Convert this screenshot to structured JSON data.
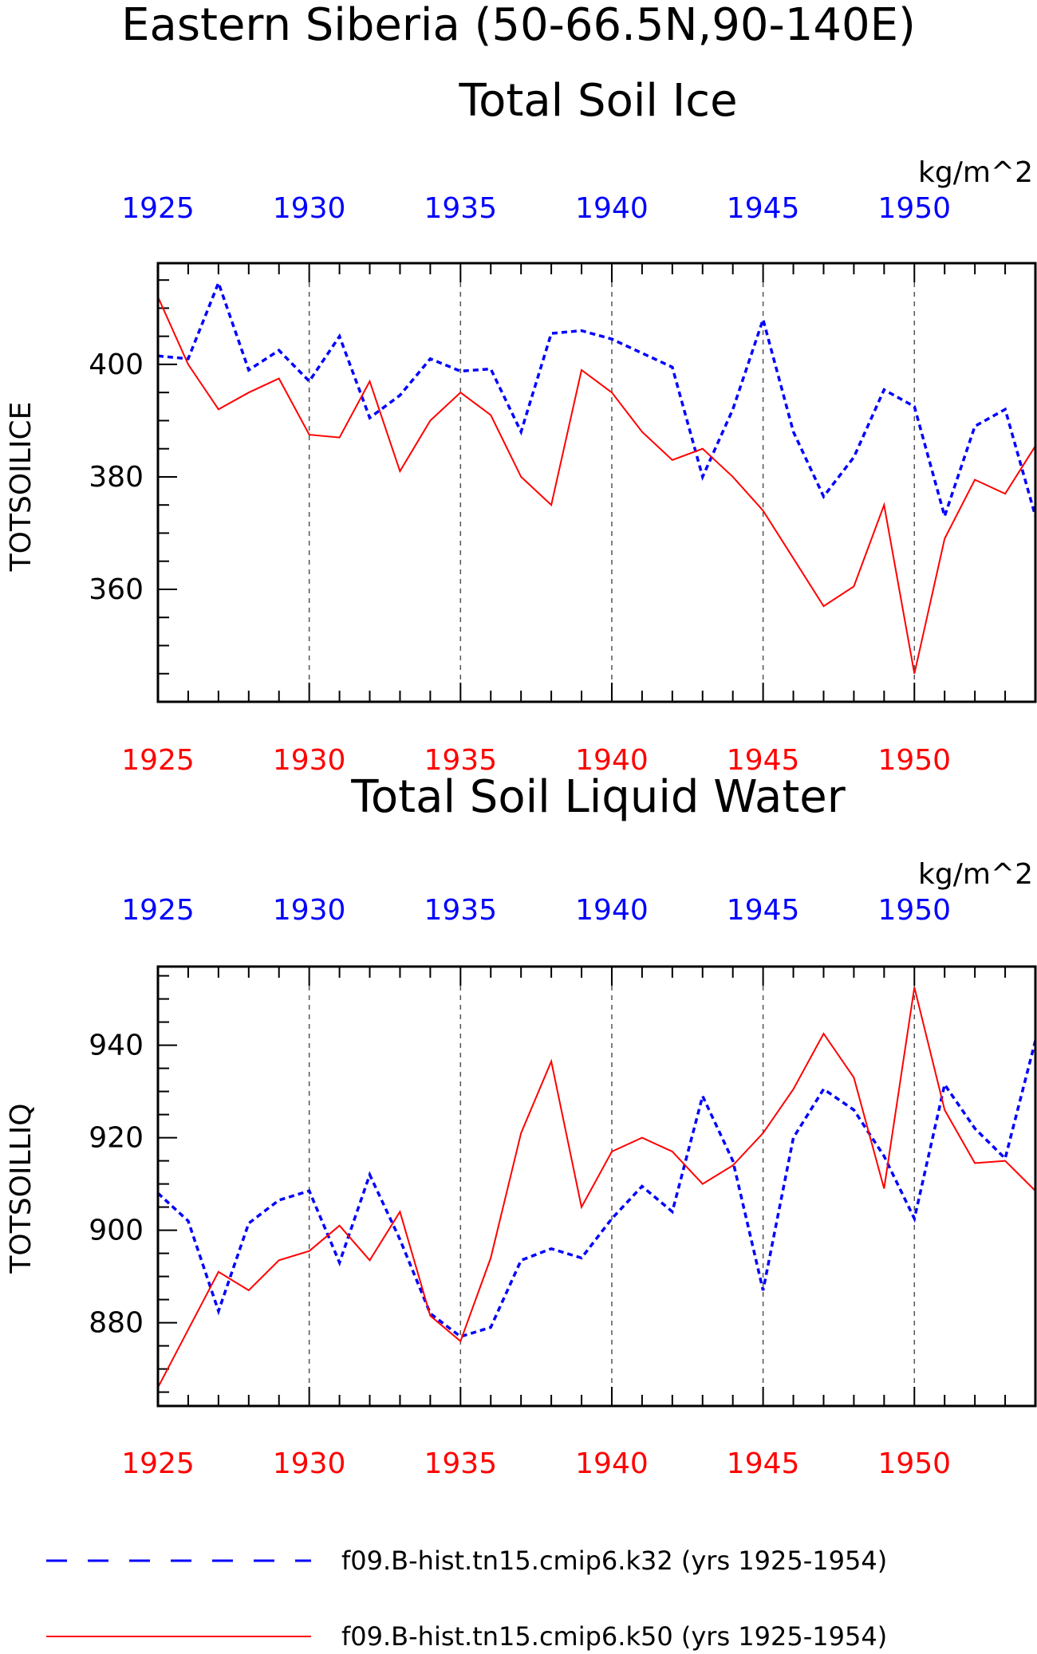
{
  "title": "Eastern Siberia (50-66.5N,90-140E)",
  "colors": {
    "k32": "#0000ff",
    "k50": "#ff0000",
    "grid": "#555555"
  },
  "legend": {
    "k32_label": "f09.B-hist.tn15.cmip6.k32 (yrs 1925-1954)",
    "k50_label": "f09.B-hist.tn15.cmip6.k50 (yrs 1925-1954)"
  },
  "chart_data": [
    {
      "type": "line",
      "title": "Total Soil Ice",
      "ylabel": "TOTSOILICE",
      "units": "kg/m^2",
      "xlim": [
        1925,
        1954
      ],
      "ylim": [
        340,
        418
      ],
      "yticks": [
        360,
        380,
        400
      ],
      "xticks": [
        1925,
        1930,
        1935,
        1940,
        1945,
        1950
      ],
      "gridlines_x": [
        1930,
        1935,
        1940,
        1945,
        1950
      ],
      "x": [
        1925,
        1926,
        1927,
        1928,
        1929,
        1930,
        1931,
        1932,
        1933,
        1934,
        1935,
        1936,
        1937,
        1938,
        1939,
        1940,
        1941,
        1942,
        1943,
        1944,
        1945,
        1946,
        1947,
        1948,
        1949,
        1950,
        1951,
        1952,
        1953,
        1954
      ],
      "series": [
        {
          "key": "k32",
          "style": "dashed",
          "values": [
            401.5,
            401,
            414.5,
            399,
            402.5,
            397,
            405,
            390.5,
            394.5,
            401,
            398.8,
            399.2,
            388,
            405.5,
            406,
            404.5,
            402,
            399.5,
            380,
            392,
            408,
            388,
            376.5,
            383.5,
            395.5,
            392.5,
            373,
            389,
            392,
            373
          ]
        },
        {
          "key": "k50",
          "style": "solid",
          "values": [
            412,
            400,
            392,
            395,
            397.5,
            387.5,
            387,
            397,
            381,
            390,
            395,
            391,
            380,
            375,
            399,
            395,
            388,
            383,
            385,
            380,
            374,
            365.5,
            357,
            360.5,
            375,
            345,
            369,
            379.5,
            377,
            385.5
          ]
        }
      ]
    },
    {
      "type": "line",
      "title": "Total Soil Liquid Water",
      "ylabel": "TOTSOILLIQ",
      "units": "kg/m^2",
      "xlim": [
        1925,
        1954
      ],
      "ylim": [
        862,
        957
      ],
      "yticks": [
        880,
        900,
        920,
        940
      ],
      "xticks": [
        1925,
        1930,
        1935,
        1940,
        1945,
        1950
      ],
      "gridlines_x": [
        1930,
        1935,
        1940,
        1945,
        1950
      ],
      "x": [
        1925,
        1926,
        1927,
        1928,
        1929,
        1930,
        1931,
        1932,
        1933,
        1934,
        1935,
        1936,
        1937,
        1938,
        1939,
        1940,
        1941,
        1942,
        1943,
        1944,
        1945,
        1946,
        1947,
        1948,
        1949,
        1950,
        1951,
        1952,
        1953,
        1954
      ],
      "series": [
        {
          "key": "k32",
          "style": "dashed",
          "values": [
            908,
            902,
            882.5,
            901.5,
            906.5,
            908.5,
            893,
            912,
            898,
            882,
            877,
            879,
            893.5,
            896,
            894,
            902.5,
            909.5,
            904,
            929,
            915,
            887,
            920,
            930.5,
            926,
            916,
            902.5,
            931.5,
            922,
            915.5,
            941
          ]
        },
        {
          "key": "k50",
          "style": "solid",
          "values": [
            866,
            878.5,
            891,
            887,
            893.5,
            895.5,
            901,
            893.5,
            904,
            881.5,
            876,
            894,
            921,
            936.5,
            905,
            917,
            920,
            917,
            910,
            914,
            921,
            930.5,
            942.5,
            933,
            909,
            952.5,
            926,
            914.5,
            915,
            908.5
          ]
        }
      ]
    }
  ]
}
